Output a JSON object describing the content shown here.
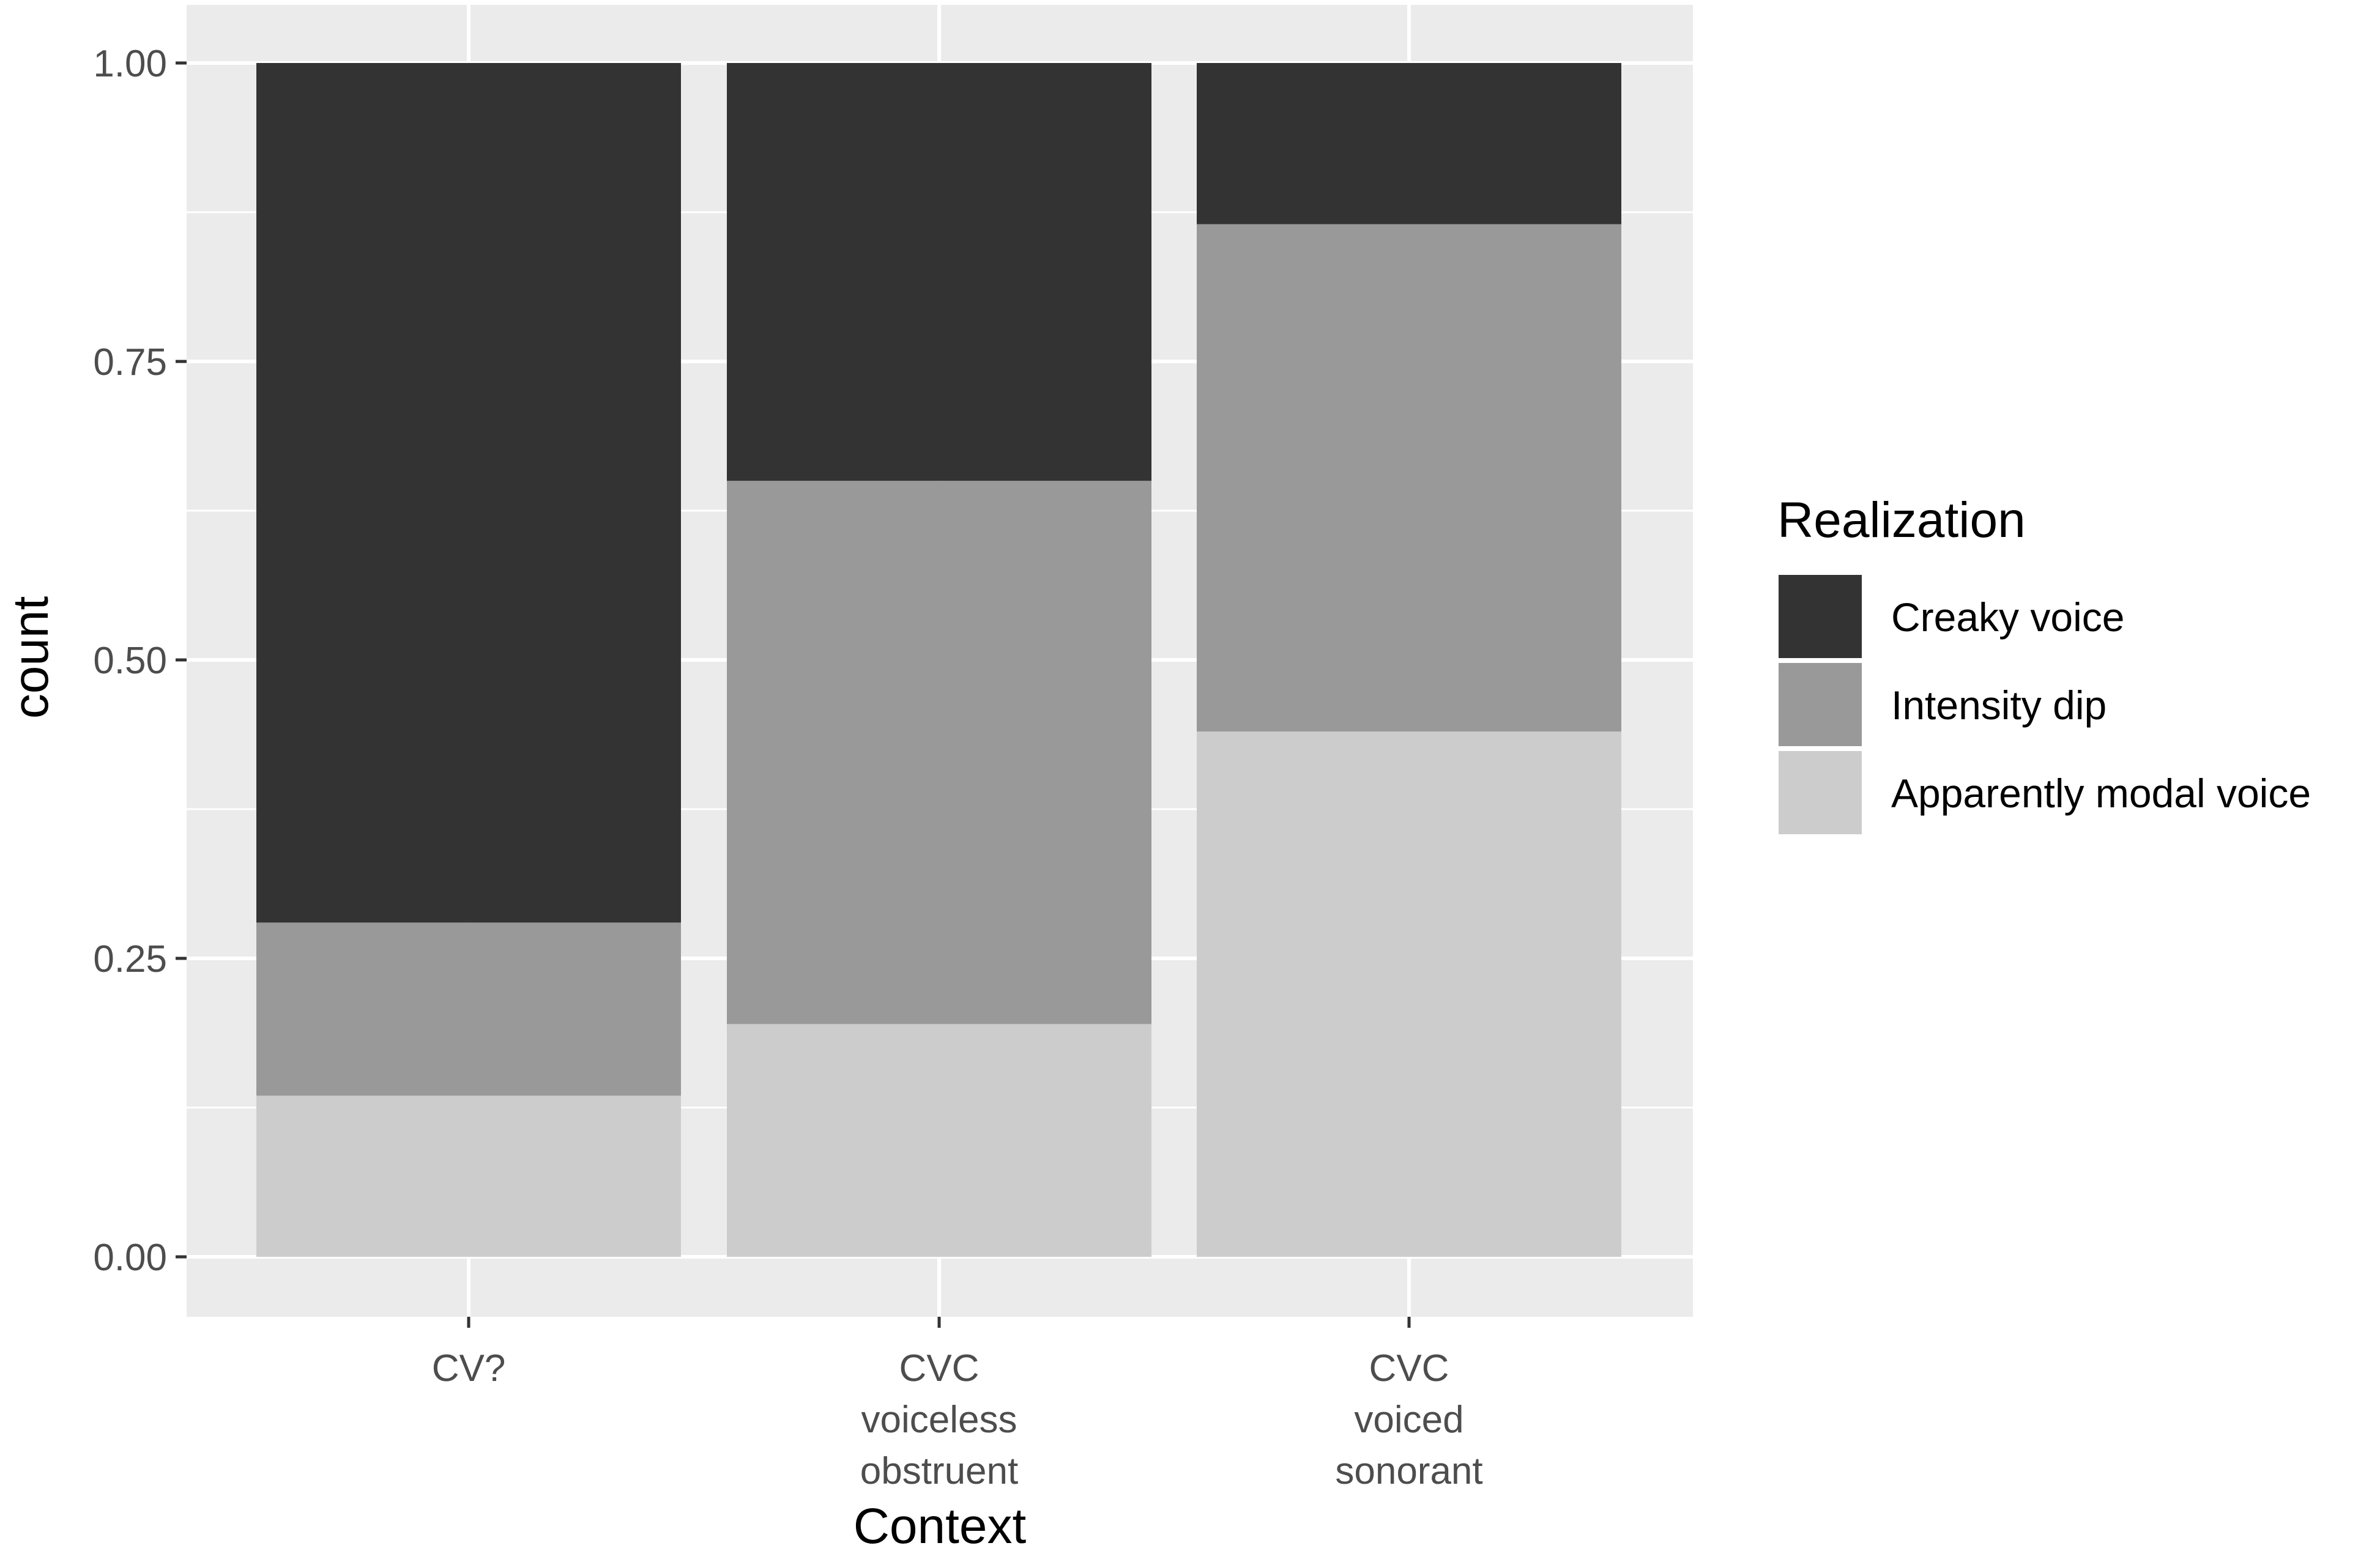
{
  "chart_data": {
    "type": "bar",
    "stacked": true,
    "categories": [
      [
        "CV?"
      ],
      [
        "CVC",
        "voiceless",
        "obstruent"
      ],
      [
        "CVC",
        "voiced",
        "sonorant"
      ]
    ],
    "series": [
      {
        "name": "Apparently modal voice",
        "color": "#cccccc",
        "values": [
          0.135,
          0.195,
          0.44
        ]
      },
      {
        "name": "Intensity dip",
        "color": "#999999",
        "values": [
          0.145,
          0.455,
          0.425
        ]
      },
      {
        "name": "Creaky voice",
        "color": "#333333",
        "values": [
          0.72,
          0.35,
          0.135
        ]
      }
    ],
    "xlabel": "Context",
    "ylabel": "count",
    "ylim": [
      0,
      1
    ],
    "yticks": [
      "0.00",
      "0.25",
      "0.50",
      "0.75",
      "1.00"
    ],
    "ytick_values": [
      0,
      0.25,
      0.5,
      0.75,
      1.0
    ],
    "grid": true,
    "legend": {
      "title": "Realization",
      "position": "right",
      "entries": [
        "Creaky voice",
        "Intensity dip",
        "Apparently modal voice"
      ]
    },
    "panel_background": "#ebebeb",
    "grid_color": "#ffffff"
  }
}
